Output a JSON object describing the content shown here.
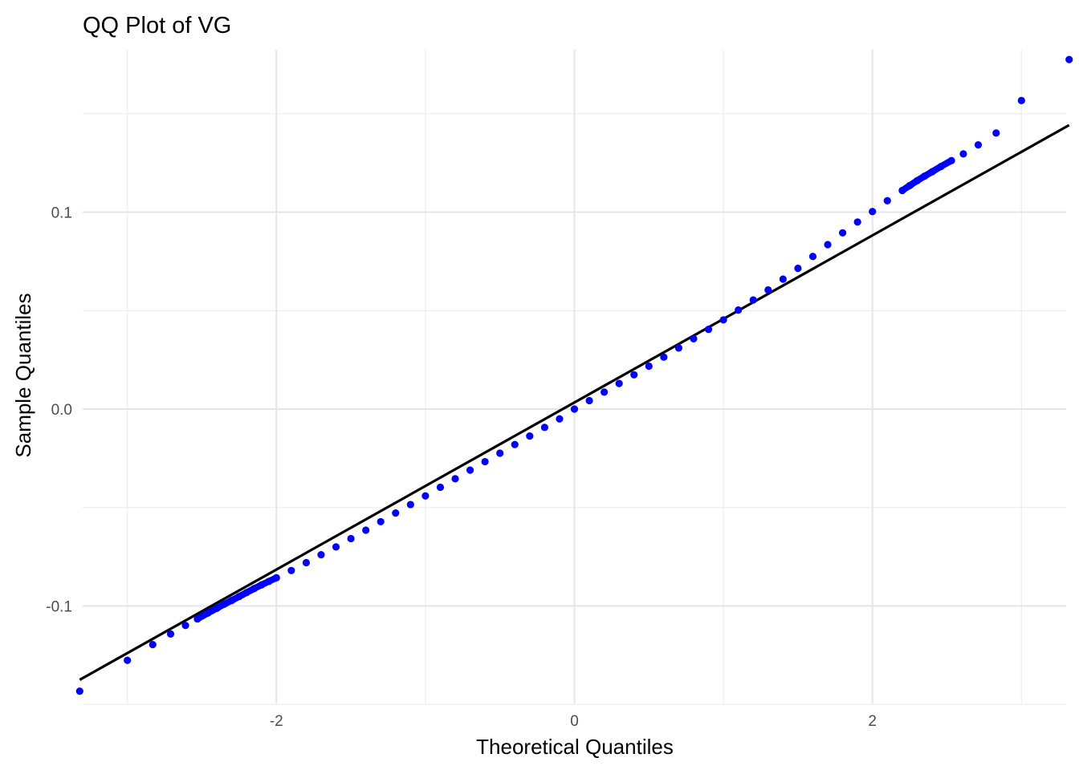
{
  "chart_data": {
    "type": "scatter",
    "title": "QQ Plot of VG",
    "xlabel": "Theoretical Quantiles",
    "ylabel": "Sample Quantiles",
    "xlim": [
      -3.3,
      3.3
    ],
    "ylim": [
      -0.1495,
      0.1825
    ],
    "x_ticks": [
      {
        "value": -2,
        "label": "-2"
      },
      {
        "value": 0,
        "label": "0"
      },
      {
        "value": 2,
        "label": "2"
      }
    ],
    "y_ticks": [
      {
        "value": -0.1,
        "label": "-0.1"
      },
      {
        "value": 0.0,
        "label": "0.0"
      },
      {
        "value": 0.1,
        "label": "0.1"
      }
    ],
    "x_minor": [
      -3,
      -1,
      1,
      3
    ],
    "y_minor": [
      -0.15,
      -0.05,
      0.05,
      0.15
    ],
    "grid": true,
    "reference_line": {
      "x": [
        -3.32,
        3.32
      ],
      "y": [
        -0.1375,
        0.1442
      ],
      "color": "#000000"
    },
    "series": [
      {
        "color": "#0000ff",
        "points": [
          [
            -3.32,
            -0.1433
          ],
          [
            -3.0,
            -0.1276
          ],
          [
            -2.83,
            -0.1196
          ],
          [
            -2.71,
            -0.1142
          ],
          [
            -2.61,
            -0.1099
          ],
          [
            -2.53,
            -0.1066
          ],
          [
            -2.46,
            -0.1036
          ],
          [
            -2.4,
            -0.1012
          ],
          [
            -2.35,
            -0.0991
          ],
          [
            -2.3,
            -0.0972
          ],
          [
            -2.25,
            -0.0952
          ],
          [
            -2.2,
            -0.0932
          ],
          [
            -2.15,
            -0.0912
          ],
          [
            -2.1,
            -0.0893
          ],
          [
            -2.05,
            -0.0875
          ],
          [
            -2.0,
            -0.0857
          ],
          [
            -1.9,
            -0.082
          ],
          [
            -1.8,
            -0.078
          ],
          [
            -1.7,
            -0.074
          ],
          [
            -1.6,
            -0.07
          ],
          [
            -1.5,
            -0.0658
          ],
          [
            -1.4,
            -0.0615
          ],
          [
            -1.3,
            -0.0572
          ],
          [
            -1.2,
            -0.0528
          ],
          [
            -1.1,
            -0.0485
          ],
          [
            -1.0,
            -0.0441
          ],
          [
            -0.9,
            -0.0397
          ],
          [
            -0.8,
            -0.0354
          ],
          [
            -0.7,
            -0.031
          ],
          [
            -0.6,
            -0.0267
          ],
          [
            -0.5,
            -0.0224
          ],
          [
            -0.4,
            -0.018
          ],
          [
            -0.3,
            -0.0137
          ],
          [
            -0.2,
            -0.0093
          ],
          [
            -0.1,
            -0.005
          ],
          [
            0.0,
            0.0
          ],
          [
            0.1,
            0.0043
          ],
          [
            0.2,
            0.0086
          ],
          [
            0.3,
            0.013
          ],
          [
            0.4,
            0.0174
          ],
          [
            0.5,
            0.0218
          ],
          [
            0.6,
            0.0264
          ],
          [
            0.7,
            0.031
          ],
          [
            0.8,
            0.0357
          ],
          [
            0.9,
            0.0405
          ],
          [
            1.0,
            0.0453
          ],
          [
            1.1,
            0.0503
          ],
          [
            1.2,
            0.0554
          ],
          [
            1.3,
            0.0605
          ],
          [
            1.4,
            0.066
          ],
          [
            1.5,
            0.0715
          ],
          [
            1.6,
            0.0775
          ],
          [
            1.7,
            0.0835
          ],
          [
            1.8,
            0.0895
          ],
          [
            1.9,
            0.095
          ],
          [
            2.0,
            0.1003
          ],
          [
            2.1,
            0.1058
          ],
          [
            2.2,
            0.111
          ],
          [
            2.25,
            0.1135
          ],
          [
            2.3,
            0.116
          ],
          [
            2.35,
            0.1183
          ],
          [
            2.4,
            0.1205
          ],
          [
            2.46,
            0.1232
          ],
          [
            2.53,
            0.1262
          ],
          [
            2.61,
            0.1296
          ],
          [
            2.71,
            0.1342
          ],
          [
            2.83,
            0.1402
          ],
          [
            3.0,
            0.1567
          ],
          [
            3.32,
            0.1775
          ]
        ]
      }
    ]
  }
}
